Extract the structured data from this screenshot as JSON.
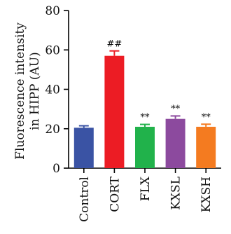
{
  "chart_data": {
    "type": "bar",
    "ylabel": [
      "Fluorescence intensity",
      "in HIPP (AU)"
    ],
    "xlabel": "",
    "ylim": [
      0,
      80
    ],
    "yticks": [
      0,
      20,
      40,
      60,
      80
    ],
    "categories": [
      "Control",
      "CORT",
      "FLX",
      "KXSL",
      "KXSH"
    ],
    "values": [
      20.5,
      57,
      21,
      25,
      21
    ],
    "errors": [
      1,
      2.5,
      1.2,
      1.5,
      1.3
    ],
    "annotations": [
      "",
      "##",
      "**",
      "**",
      "**"
    ],
    "colors": [
      "#3a53a4",
      "#ec1c24",
      "#21b24b",
      "#8c4a9e",
      "#f47b20"
    ],
    "grid": false
  }
}
